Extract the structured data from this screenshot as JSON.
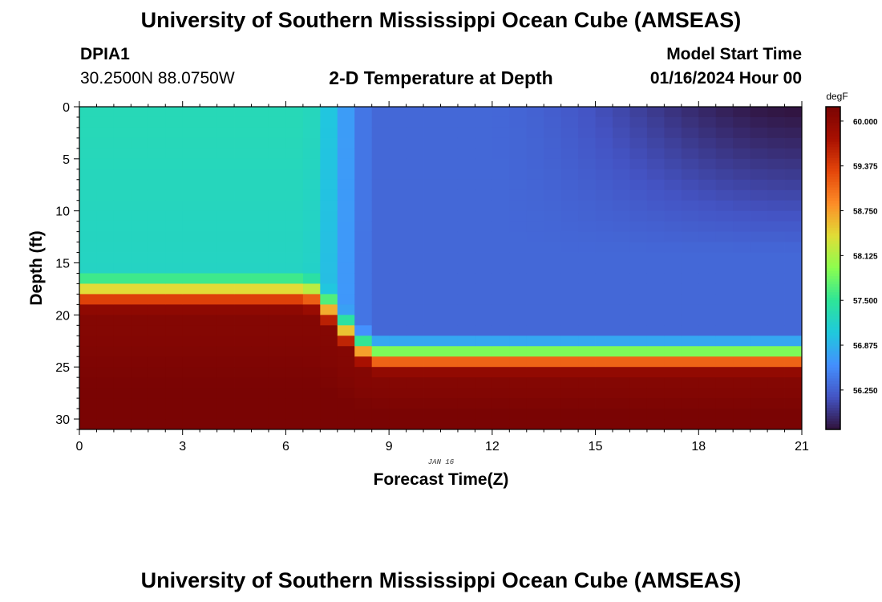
{
  "header": {
    "title_top": "University of Southern Mississippi Ocean Cube (AMSEAS)",
    "title_bottom": "University of Southern Mississippi Ocean Cube (AMSEAS)",
    "station_id": "DPIA1",
    "station_coords": "30.2500N  88.0750W",
    "model_start_label": "Model Start Time",
    "model_start_value": "01/16/2024 Hour 00"
  },
  "chart_data": {
    "type": "heatmap",
    "title": "2-D Temperature at Depth",
    "xlabel": "Forecast Time(Z)",
    "ylabel": "Depth (ft)",
    "date_label": "JAN 16",
    "xlim": [
      0,
      21
    ],
    "ylim": [
      0,
      31
    ],
    "x_ticks": [
      0,
      3,
      6,
      9,
      12,
      15,
      18,
      21
    ],
    "y_ticks": [
      0,
      5,
      10,
      15,
      20,
      25,
      30
    ],
    "colorbar": {
      "unit": "degF",
      "min": 55.7,
      "max": 60.2,
      "tick_values": [
        60.0,
        59.375,
        58.75,
        58.125,
        57.5,
        56.875,
        56.25
      ],
      "tick_labels": [
        "60.000",
        "59.375",
        "58.750",
        "58.125",
        "57.500",
        "56.875",
        "56.250"
      ],
      "colors": [
        "#30123b",
        "#4454c4",
        "#4490fe",
        "#1fc9dd",
        "#2ee597",
        "#8bfe4f",
        "#e1dd37",
        "#fd8c27",
        "#e4460a",
        "#a81001",
        "#7a0403"
      ]
    },
    "field": {
      "description": "temperature (degF) vs forecast hour and depth",
      "surface_warm_early": 57.3,
      "surface_cold_late": 55.7,
      "mid_cold": 56.3,
      "bottom_warm": 60.1,
      "thermocline_start_depth_ft": 15.5,
      "thermocline_end_depth_ft": 21.5,
      "front_hour": 7.7,
      "col_hours": [
        0,
        0.5,
        1,
        1.5,
        2,
        2.5,
        3,
        3.5,
        4,
        4.5,
        5,
        5.5,
        6,
        6.5,
        7,
        7.5,
        8,
        8.5,
        9,
        9.5,
        10,
        10.5,
        11,
        11.5,
        12,
        12.5,
        13,
        13.5,
        14,
        14.5,
        15,
        15.5,
        16,
        16.5,
        17,
        17.5,
        18,
        18.5,
        19,
        19.5,
        20,
        20.5
      ],
      "row_depths": [
        0,
        1,
        2,
        3,
        4,
        5,
        6,
        7,
        8,
        9,
        10,
        11,
        12,
        13,
        14,
        15,
        16,
        17,
        18,
        19,
        20,
        21,
        22,
        23,
        24,
        25,
        26,
        27,
        28,
        29,
        30
      ]
    }
  }
}
